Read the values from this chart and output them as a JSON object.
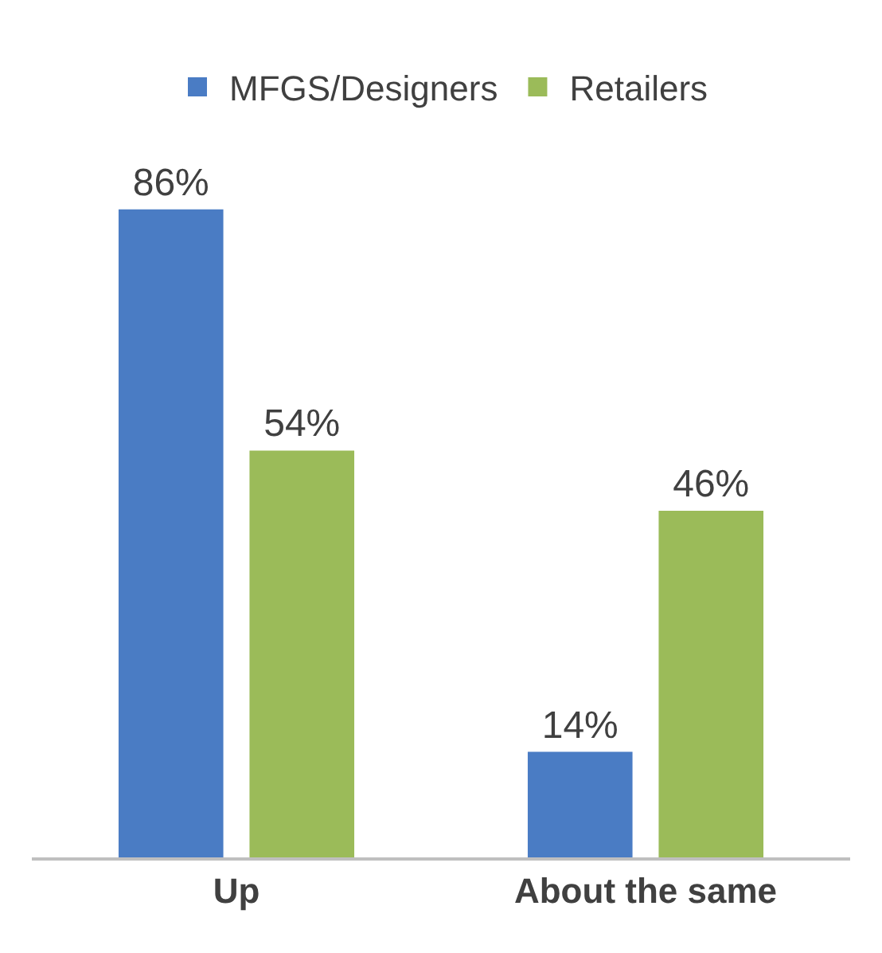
{
  "chart_data": {
    "type": "bar",
    "categories": [
      "Up",
      "About the same"
    ],
    "series": [
      {
        "name": "MFGS/Designers",
        "color": "#4a7cc4",
        "values": [
          86,
          14
        ],
        "value_labels": [
          "86%",
          "14%"
        ]
      },
      {
        "name": "Retailers",
        "color": "#9bbb59",
        "values": [
          54,
          46
        ],
        "value_labels": [
          "54%",
          "46%"
        ]
      }
    ],
    "legend": "top",
    "grid": false
  }
}
